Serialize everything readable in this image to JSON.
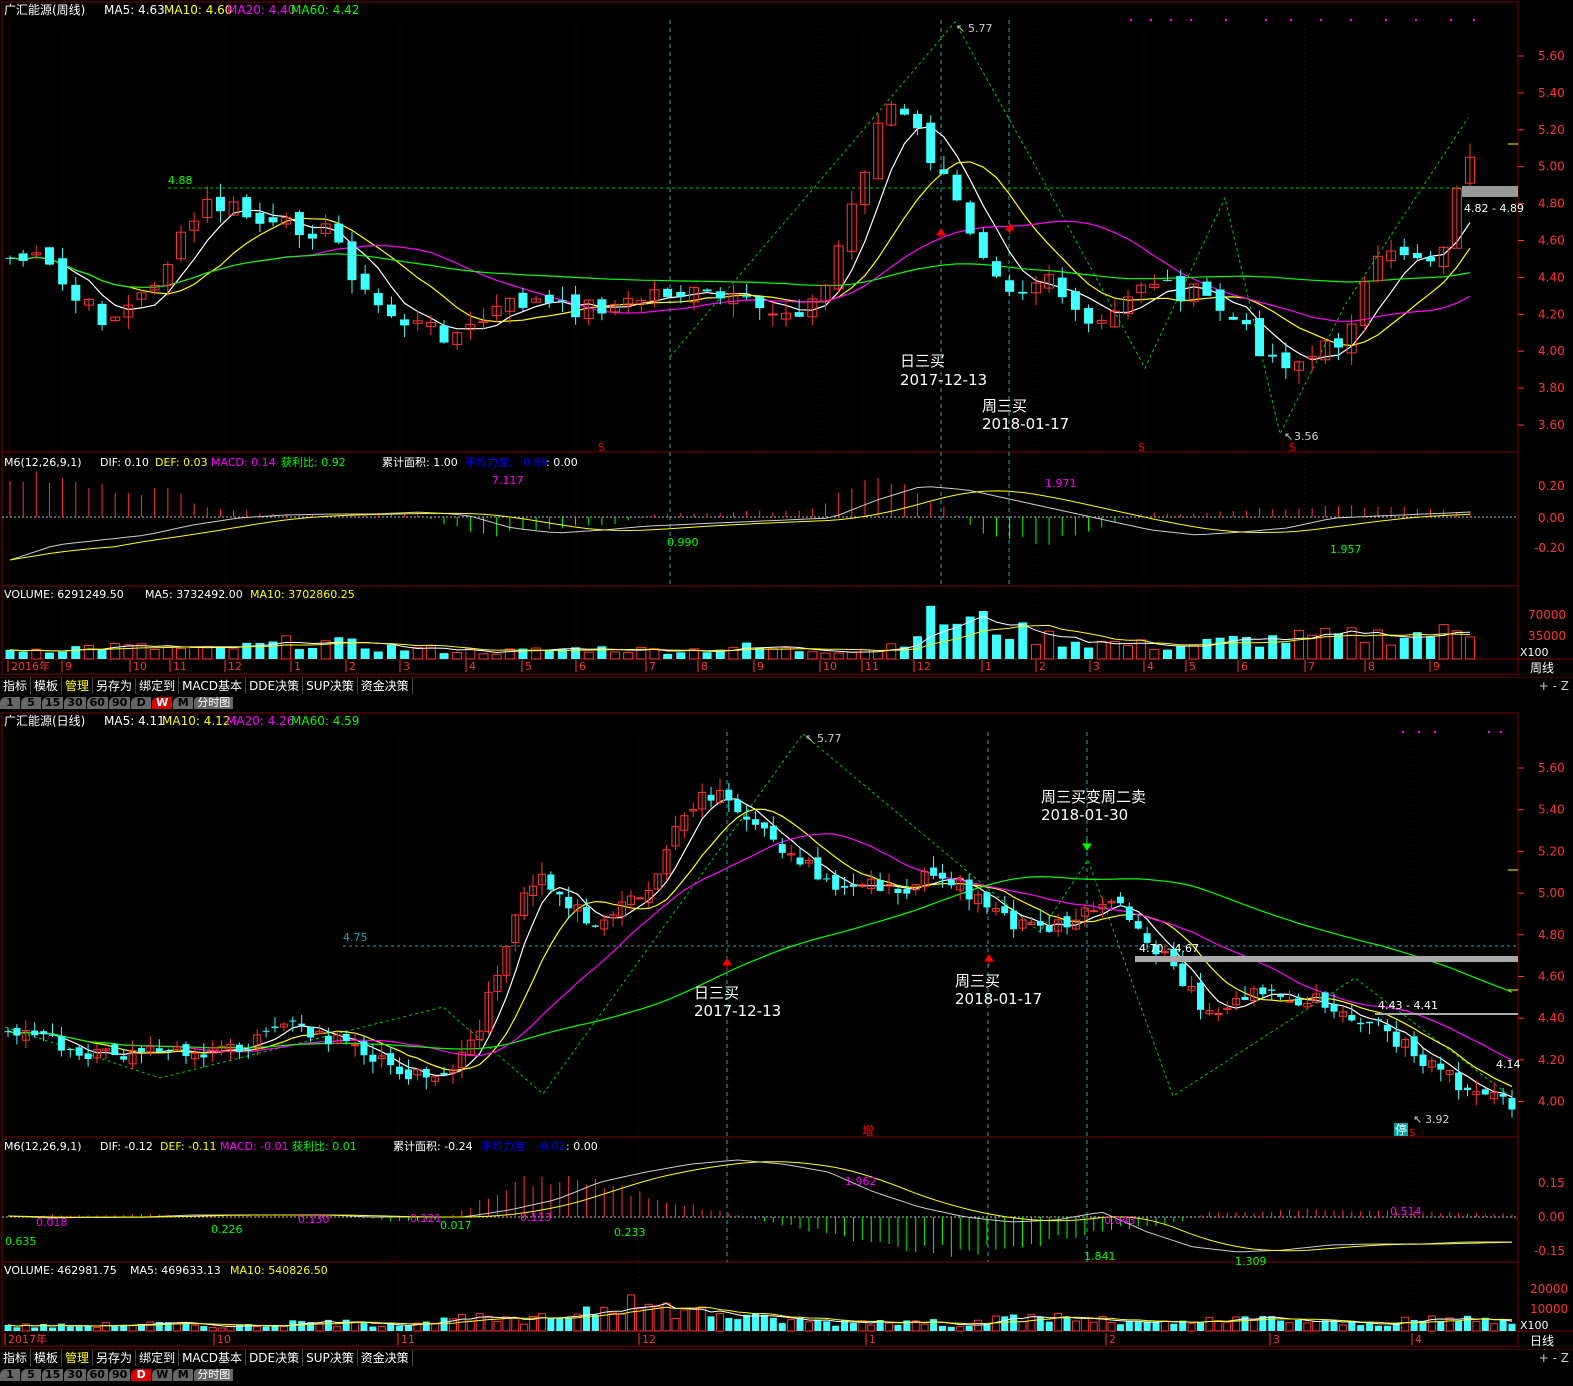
{
  "colors": {
    "up": "#ff3333",
    "down": "#40ffff",
    "ma5": "#ffffff",
    "ma10": "#ffff00",
    "ma20": "#ff00ff",
    "ma60": "#00ff00",
    "dif": "#cccccc",
    "dea": "#ffff00",
    "grid": "#800000",
    "axis": "#ff3333"
  },
  "weekly": {
    "legend": {
      "name": "广汇能源(周线)",
      "ma5": "MA5: 4.63",
      "ma10": "MA10: 4.60",
      "ma20": "MA20: 4.40",
      "ma60": "MA60: 4.42"
    },
    "price_ticks": [
      "5.60",
      "5.40",
      "5.20",
      "5.00",
      "4.80",
      "4.60",
      "4.40",
      "4.20",
      "4.00",
      "3.80",
      "3.60"
    ],
    "hline_label": "4.88",
    "high_label": "5.77",
    "low_label": "3.56",
    "range_label": "4.82 - 4.89",
    "ann1_line1": "日三买",
    "ann1_line2": "2017-12-13",
    "ann2_line1": "周三买",
    "ann2_line2": "2018-01-17",
    "s_marker": "S",
    "macd_legend": {
      "m6": "M6(12,26,9,1)",
      "dif": "DIF: 0.10",
      "def": "DEF: 0.03",
      "macd": "MACD: 0.14",
      "ratio": "获利比: 0.92",
      "area": "累计面积: 1.00",
      "avg_label": "平均力度:",
      "avg_value": "0.89",
      "tail": ": 0.00"
    },
    "macd_ticks": [
      "0.20",
      "0.00",
      "-0.20"
    ],
    "macd_labels": {
      "a": "7.117",
      "b": "0.990",
      "c": "1.971",
      "d": "1.957"
    },
    "vol_legend": {
      "v": "VOLUME: 6291249.50",
      "ma5": "MA5: 3732492.00",
      "ma10": "MA10: 3702860.25"
    },
    "vol_ticks": [
      "70000",
      "35000"
    ],
    "x100": "X100",
    "period_name": "周线",
    "date_labels": [
      "2016年",
      "9",
      "10",
      "11",
      "12",
      "1",
      "2",
      "3",
      "4",
      "5",
      "6",
      "7",
      "8",
      "9",
      "10",
      "11",
      "12",
      "1",
      "2",
      "3",
      "4",
      "5",
      "6",
      "7",
      "8",
      "9"
    ]
  },
  "daily": {
    "legend": {
      "name": "广汇能源(日线)",
      "ma5": "MA5: 4.11",
      "ma10": "MA10: 4.12",
      "ma20": "MA20: 4.26",
      "ma60": "MA60: 4.59"
    },
    "price_ticks": [
      "5.60",
      "5.40",
      "5.20",
      "5.00",
      "4.80",
      "4.60",
      "4.40",
      "4.20",
      "4.00"
    ],
    "hline_label": "4.75",
    "high_label": "5.77",
    "low_label": "3.92",
    "range1": "4.70 - 4.67",
    "range2": "4.43 - 4.41",
    "last_label": "4.14",
    "ann1_line1": "日三买",
    "ann1_line2": "2017-12-13",
    "ann2_line1": "周三买",
    "ann2_line2": "2018-01-17",
    "ann3_line1": "周三买变周二卖",
    "ann3_line2": "2018-01-30",
    "zeng": "增",
    "ting": "停",
    "s_marker": "S",
    "macd_legend": {
      "m6": "M6(12,26,9,1)",
      "dif": "DIF: -0.12",
      "def": "DEF: -0.11",
      "macd": "MACD: -0.01",
      "ratio": "获利比: 0.01",
      "area": "累计面积: -0.24",
      "avg_label": "平均力度:",
      "avg_value": "-0.02",
      "tail": ": 0.00"
    },
    "macd_ticks": [
      "0.15",
      "0.00",
      "-0.15"
    ],
    "macd_labels": {
      "a": "0.635",
      "b": "0.018",
      "c": "0.226",
      "d": "0.017",
      "e": "0.233",
      "f": "1.962",
      "g": "1.841",
      "h": "0.514",
      "i": "0.130",
      "j": "0.121",
      "k": "0.113",
      "l": "0.043",
      "m": "1.309"
    },
    "vol_legend": {
      "v": "VOLUME: 462981.75",
      "ma5": "MA5: 469633.13",
      "ma10": "MA10: 540826.50"
    },
    "vol_ticks": [
      "20000",
      "10000"
    ],
    "x100": "X100",
    "period_name": "日线",
    "date_labels": [
      "2017年",
      "10",
      "11",
      "12",
      "1",
      "2",
      "3",
      "4"
    ]
  },
  "toolbar": {
    "tabs": [
      "指标",
      "模板",
      "管理",
      "另存为",
      "绑定到",
      "MACD基本",
      "DDE决策",
      "SUP决策",
      "资金决策"
    ],
    "active": "管理",
    "right": "+ - Z"
  },
  "periodbar": {
    "buttons": [
      "1",
      "5",
      "15",
      "30",
      "60",
      "90",
      "D",
      "W",
      "M"
    ],
    "extra": "分时图"
  }
}
